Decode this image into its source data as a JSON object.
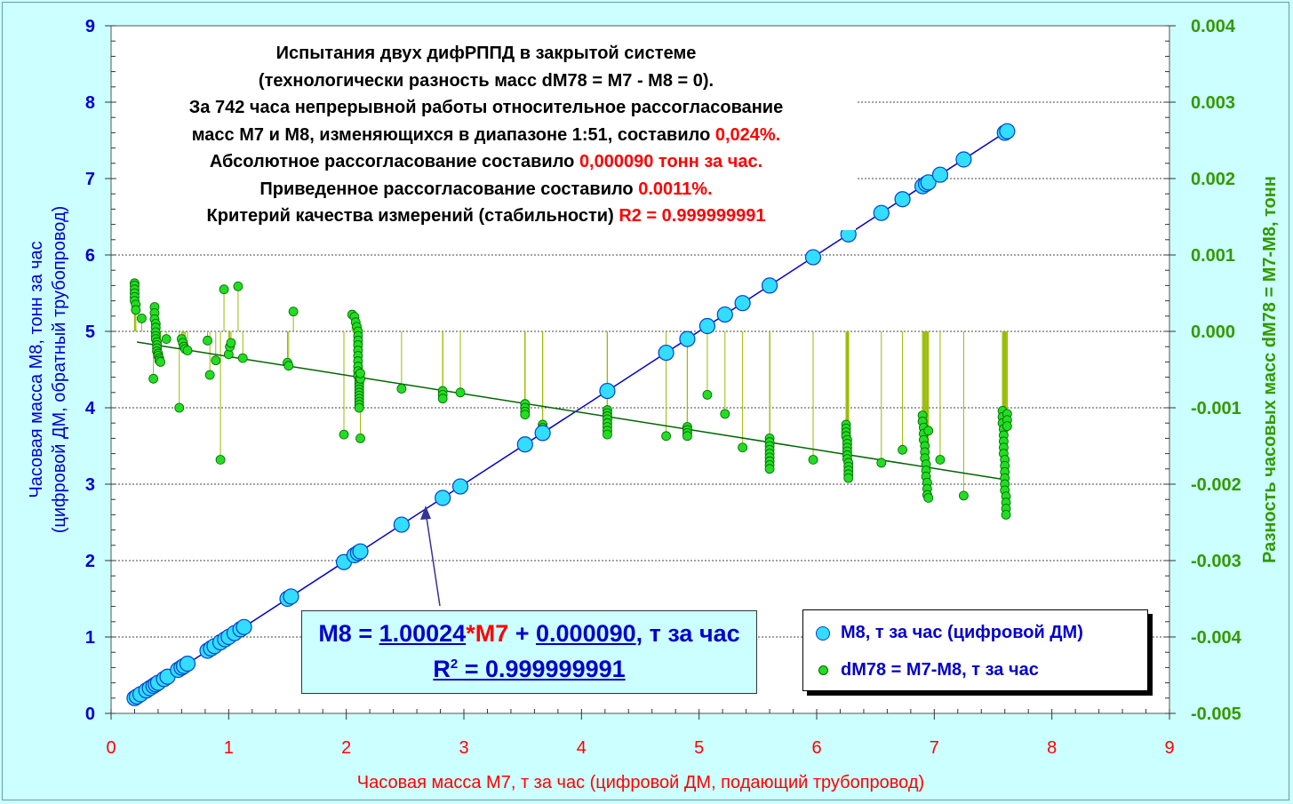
{
  "chart_data": {
    "type": "scatter",
    "title_lines": [
      [
        {
          "t": "Испытания двух дифРППД в закрытой системе"
        }
      ],
      [
        {
          "t": "(технологически разность масс dM78 = M7 - M8 = 0)."
        }
      ],
      [
        {
          "t": "За 742 часа непрерывной работы относительное рассогласование"
        }
      ],
      [
        {
          "t": "масс M7 и M8, изменяющихся в диапазоне 1:51, составило "
        },
        {
          "t": "0,024%.",
          "c": "red"
        }
      ],
      [
        {
          "t": "Абсолютное рассогласование составило "
        },
        {
          "t": "0,000090 тонн за час.",
          "c": "red"
        }
      ],
      [
        {
          "t": "Приведенное рассогласование составило "
        },
        {
          "t": "0.0011%.",
          "c": "red"
        }
      ],
      [
        {
          "t": "Критерий качества измерений (стабильности) "
        },
        {
          "t": "R2 = 0.999999991",
          "c": "red"
        }
      ]
    ],
    "xlabel": "Часовая масса M7, т за час (цифровой ДМ, подающий трубопровод)",
    "ylabel_line1": "Часовая масса M8, тонн за час",
    "ylabel_line2": "(цифровой ДМ, обратный трубопровод)",
    "y2label": "Разность часовых масс dM78 = M7-M8, тонн",
    "xlim": [
      0,
      9
    ],
    "ylim": [
      0,
      9
    ],
    "y2lim": [
      -0.005,
      0.004
    ],
    "xticks": [
      "0",
      "1",
      "2",
      "3",
      "4",
      "5",
      "6",
      "7",
      "8",
      "9"
    ],
    "yticks": [
      "0",
      "1",
      "2",
      "3",
      "4",
      "5",
      "6",
      "7",
      "8",
      "9"
    ],
    "y2ticks": [
      "-0.005",
      "-0.004",
      "-0.003",
      "-0.002",
      "-0.001",
      "0.000",
      "0.001",
      "0.002",
      "0.003",
      "0.004"
    ],
    "grid": "horizontal dashed",
    "colors": {
      "x_axis_text": "#ff0000",
      "y_axis_text": "#0000cc",
      "y2_axis_text": "#339900",
      "m8_fill": "#33ddff",
      "m8_edge": "#0044cc",
      "dm_fill": "#22dd22",
      "dm_edge": "#006600",
      "drop_line": "#99bb00",
      "trend_m8": "#0000cc",
      "trend_dm": "#006600"
    },
    "equation": {
      "p1": "M8 = ",
      "slope": "1.00024",
      "p2": "*",
      "var": "M7",
      "p3": " + ",
      "intercept": "0.000090",
      "p4": ", т за час",
      "r2_label": "R",
      "r2_sup": "2",
      "r2_value": " = 0.999999991"
    },
    "legend_position": "bottom-right",
    "series": [
      {
        "name": "M8, т за час (цифровой ДМ)",
        "axis": "left",
        "trend": {
          "slope": 1.00024,
          "intercept": 9e-05
        },
        "points": [
          [
            0.2,
            0.2
          ],
          [
            0.22,
            0.22
          ],
          [
            0.25,
            0.25
          ],
          [
            0.3,
            0.3
          ],
          [
            0.33,
            0.33
          ],
          [
            0.36,
            0.36
          ],
          [
            0.38,
            0.38
          ],
          [
            0.4,
            0.4
          ],
          [
            0.45,
            0.45
          ],
          [
            0.48,
            0.48
          ],
          [
            0.57,
            0.57
          ],
          [
            0.6,
            0.6
          ],
          [
            0.62,
            0.62
          ],
          [
            0.65,
            0.65
          ],
          [
            0.82,
            0.82
          ],
          [
            0.85,
            0.85
          ],
          [
            0.88,
            0.88
          ],
          [
            0.93,
            0.93
          ],
          [
            0.97,
            0.97
          ],
          [
            1.0,
            1.0
          ],
          [
            1.05,
            1.05
          ],
          [
            1.1,
            1.1
          ],
          [
            1.13,
            1.13
          ],
          [
            1.5,
            1.5
          ],
          [
            1.53,
            1.53
          ],
          [
            1.98,
            1.98
          ],
          [
            2.07,
            2.07
          ],
          [
            2.1,
            2.1
          ],
          [
            2.12,
            2.12
          ],
          [
            2.47,
            2.47
          ],
          [
            2.82,
            2.82
          ],
          [
            2.97,
            2.97
          ],
          [
            3.52,
            3.52
          ],
          [
            3.67,
            3.67
          ],
          [
            4.22,
            4.22
          ],
          [
            4.72,
            4.72
          ],
          [
            4.9,
            4.9
          ],
          [
            5.07,
            5.07
          ],
          [
            5.22,
            5.22
          ],
          [
            5.37,
            5.37
          ],
          [
            5.6,
            5.6
          ],
          [
            5.97,
            5.97
          ],
          [
            6.27,
            6.27
          ],
          [
            6.55,
            6.55
          ],
          [
            6.73,
            6.73
          ],
          [
            6.9,
            6.9
          ],
          [
            6.93,
            6.93
          ],
          [
            6.95,
            6.95
          ],
          [
            7.05,
            7.05
          ],
          [
            7.25,
            7.25
          ],
          [
            7.6,
            7.6
          ],
          [
            7.62,
            7.62
          ]
        ]
      },
      {
        "name": "dM78 = M7-M8, т за час",
        "axis": "right",
        "trend": {
          "x0": 0.22,
          "y0": -0.00014,
          "x1": 7.6,
          "y1": -0.00194
        },
        "points": [
          [
            0.2,
            0.00063
          ],
          [
            0.2,
            0.0006
          ],
          [
            0.2,
            0.00055
          ],
          [
            0.2,
            0.0005
          ],
          [
            0.2,
            0.00045
          ],
          [
            0.2,
            0.0004
          ],
          [
            0.21,
            0.00035
          ],
          [
            0.21,
            0.00028
          ],
          [
            0.26,
            0.00017
          ],
          [
            0.36,
            -0.00062
          ],
          [
            0.37,
            0.00032
          ],
          [
            0.37,
            0.00024
          ],
          [
            0.37,
            0.00016
          ],
          [
            0.38,
            0.0001
          ],
          [
            0.38,
            5e-05
          ],
          [
            0.38,
            -1e-05
          ],
          [
            0.38,
            -6e-05
          ],
          [
            0.38,
            -0.0001
          ],
          [
            0.39,
            -0.00014
          ],
          [
            0.39,
            -0.00018
          ],
          [
            0.39,
            -0.00022
          ],
          [
            0.39,
            -0.00026
          ],
          [
            0.4,
            -0.00029
          ],
          [
            0.4,
            -0.00032
          ],
          [
            0.41,
            -0.00035
          ],
          [
            0.41,
            -0.00038
          ],
          [
            0.42,
            -0.0004
          ],
          [
            0.47,
            -0.0001
          ],
          [
            0.58,
            -0.001
          ],
          [
            0.6,
            -0.0001
          ],
          [
            0.61,
            -0.00015
          ],
          [
            0.62,
            -0.0002
          ],
          [
            0.63,
            -0.00023
          ],
          [
            0.65,
            -0.00025
          ],
          [
            0.82,
            -0.00012
          ],
          [
            0.84,
            -0.00057
          ],
          [
            0.89,
            -0.00038
          ],
          [
            0.93,
            -0.00168
          ],
          [
            0.96,
            0.00055
          ],
          [
            1.0,
            -0.0003
          ],
          [
            1.01,
            -0.0002
          ],
          [
            1.02,
            -0.00015
          ],
          [
            1.08,
            0.00059
          ],
          [
            1.12,
            -0.00035
          ],
          [
            1.5,
            -0.00041
          ],
          [
            1.51,
            -0.00045
          ],
          [
            1.55,
            0.00026
          ],
          [
            1.98,
            -0.00135
          ],
          [
            2.05,
            0.00022
          ],
          [
            2.07,
            0.00019
          ],
          [
            2.08,
            0.00012
          ],
          [
            2.09,
            6e-05
          ],
          [
            2.1,
            0.0
          ],
          [
            2.1,
            -6e-05
          ],
          [
            2.1,
            -0.00012
          ],
          [
            2.1,
            -0.00018
          ],
          [
            2.1,
            -0.00025
          ],
          [
            2.1,
            -0.00032
          ],
          [
            2.1,
            -0.00039
          ],
          [
            2.1,
            -0.00046
          ],
          [
            2.1,
            -0.00052
          ],
          [
            2.1,
            -0.00058
          ],
          [
            2.11,
            -0.00063
          ],
          [
            2.11,
            -0.00068
          ],
          [
            2.11,
            -0.00072
          ],
          [
            2.11,
            -0.00076
          ],
          [
            2.11,
            -0.0008
          ],
          [
            2.11,
            -0.00084
          ],
          [
            2.11,
            -0.00088
          ],
          [
            2.11,
            -0.00092
          ],
          [
            2.11,
            -0.00096
          ],
          [
            2.11,
            -0.001
          ],
          [
            2.12,
            -0.0014
          ],
          [
            2.12,
            -0.00062
          ],
          [
            2.12,
            -0.00055
          ],
          [
            2.47,
            -0.00075
          ],
          [
            2.82,
            -0.00078
          ],
          [
            2.82,
            -0.00083
          ],
          [
            2.82,
            -0.00088
          ],
          [
            2.97,
            -0.0008
          ],
          [
            3.52,
            -0.00095
          ],
          [
            3.52,
            -0.001
          ],
          [
            3.52,
            -0.00105
          ],
          [
            3.52,
            -0.00109
          ],
          [
            3.67,
            -0.00122
          ],
          [
            3.67,
            -0.00126
          ],
          [
            4.22,
            -0.00103
          ],
          [
            4.22,
            -0.00107
          ],
          [
            4.22,
            -0.00111
          ],
          [
            4.22,
            -0.00115
          ],
          [
            4.22,
            -0.0012
          ],
          [
            4.22,
            -0.00125
          ],
          [
            4.22,
            -0.0013
          ],
          [
            4.22,
            -0.00135
          ],
          [
            4.72,
            -0.00137
          ],
          [
            4.9,
            -0.00125
          ],
          [
            4.9,
            -0.00129
          ],
          [
            4.9,
            -0.00133
          ],
          [
            4.9,
            -0.00137
          ],
          [
            5.07,
            -0.00083
          ],
          [
            5.22,
            -0.00108
          ],
          [
            5.37,
            -0.00152
          ],
          [
            5.6,
            -0.0014
          ],
          [
            5.6,
            -0.00145
          ],
          [
            5.6,
            -0.0015
          ],
          [
            5.6,
            -0.00155
          ],
          [
            5.6,
            -0.0016
          ],
          [
            5.6,
            -0.00165
          ],
          [
            5.6,
            -0.0017
          ],
          [
            5.6,
            -0.00175
          ],
          [
            5.6,
            -0.0018
          ],
          [
            5.97,
            -0.00168
          ],
          [
            6.25,
            -0.00122
          ],
          [
            6.25,
            -0.00127
          ],
          [
            6.25,
            -0.00132
          ],
          [
            6.25,
            -0.00137
          ],
          [
            6.26,
            -0.00142
          ],
          [
            6.26,
            -0.00147
          ],
          [
            6.26,
            -0.00152
          ],
          [
            6.26,
            -0.00157
          ],
          [
            6.26,
            -0.00162
          ],
          [
            6.26,
            -0.00167
          ],
          [
            6.27,
            -0.00172
          ],
          [
            6.27,
            -0.00177
          ],
          [
            6.27,
            -0.00182
          ],
          [
            6.27,
            -0.00187
          ],
          [
            6.27,
            -0.00192
          ],
          [
            6.55,
            -0.00172
          ],
          [
            6.73,
            -0.00155
          ],
          [
            6.9,
            -0.0011
          ],
          [
            6.9,
            -0.00118
          ],
          [
            6.91,
            -0.00126
          ],
          [
            6.91,
            -0.00134
          ],
          [
            6.91,
            -0.00142
          ],
          [
            6.92,
            -0.0015
          ],
          [
            6.92,
            -0.00158
          ],
          [
            6.92,
            -0.00166
          ],
          [
            6.93,
            -0.00174
          ],
          [
            6.93,
            -0.00182
          ],
          [
            6.93,
            -0.0019
          ],
          [
            6.94,
            -0.00198
          ],
          [
            6.94,
            -0.00206
          ],
          [
            6.94,
            -0.00214
          ],
          [
            6.95,
            -0.00218
          ],
          [
            6.95,
            -0.0013
          ],
          [
            7.05,
            -0.00168
          ],
          [
            7.25,
            -0.00215
          ],
          [
            7.58,
            -0.00104
          ],
          [
            7.58,
            -0.00112
          ],
          [
            7.58,
            -0.0012
          ],
          [
            7.59,
            -0.00128
          ],
          [
            7.59,
            -0.00136
          ],
          [
            7.59,
            -0.00144
          ],
          [
            7.59,
            -0.00152
          ],
          [
            7.59,
            -0.0016
          ],
          [
            7.6,
            -0.00168
          ],
          [
            7.6,
            -0.00176
          ],
          [
            7.6,
            -0.00184
          ],
          [
            7.6,
            -0.00192
          ],
          [
            7.6,
            -0.002
          ],
          [
            7.6,
            -0.00208
          ],
          [
            7.61,
            -0.00216
          ],
          [
            7.61,
            -0.00224
          ],
          [
            7.61,
            -0.00232
          ],
          [
            7.61,
            -0.0024
          ],
          [
            7.62,
            -0.00108
          ],
          [
            7.62,
            -0.00116
          ],
          [
            7.62,
            -0.00124
          ]
        ]
      }
    ]
  }
}
